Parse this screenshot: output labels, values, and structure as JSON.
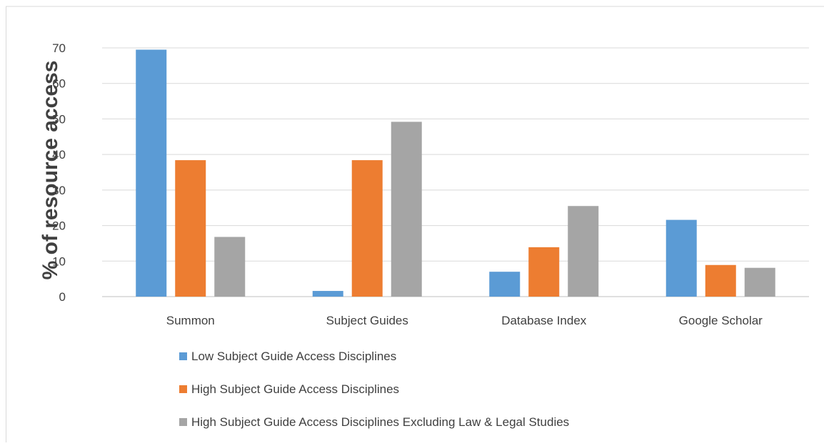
{
  "chart_data": {
    "type": "bar",
    "title": "",
    "xlabel": "",
    "ylabel": "% of resource access",
    "ylim": [
      0,
      70
    ],
    "yticks": [
      0,
      10,
      20,
      30,
      40,
      50,
      60,
      70
    ],
    "grid": true,
    "legend_position": "bottom",
    "categories": [
      "Summon",
      "Subject Guides",
      "Database Index",
      "Google Scholar"
    ],
    "series": [
      {
        "name": "Low Subject Guide Access Disciplines",
        "color": "#5B9BD5",
        "values": [
          69.5,
          1.6,
          7.0,
          21.6
        ]
      },
      {
        "name": "High Subject Guide Access Disciplines",
        "color": "#ED7D31",
        "values": [
          38.4,
          38.4,
          13.9,
          8.9
        ]
      },
      {
        "name": "High Subject Guide Access Disciplines Excluding Law & Legal Studies",
        "color": "#A5A5A5",
        "values": [
          16.8,
          49.2,
          25.5,
          8.1
        ]
      }
    ],
    "gridline_color": "#D9D9D9",
    "axis_color": "#BFBFBF"
  }
}
